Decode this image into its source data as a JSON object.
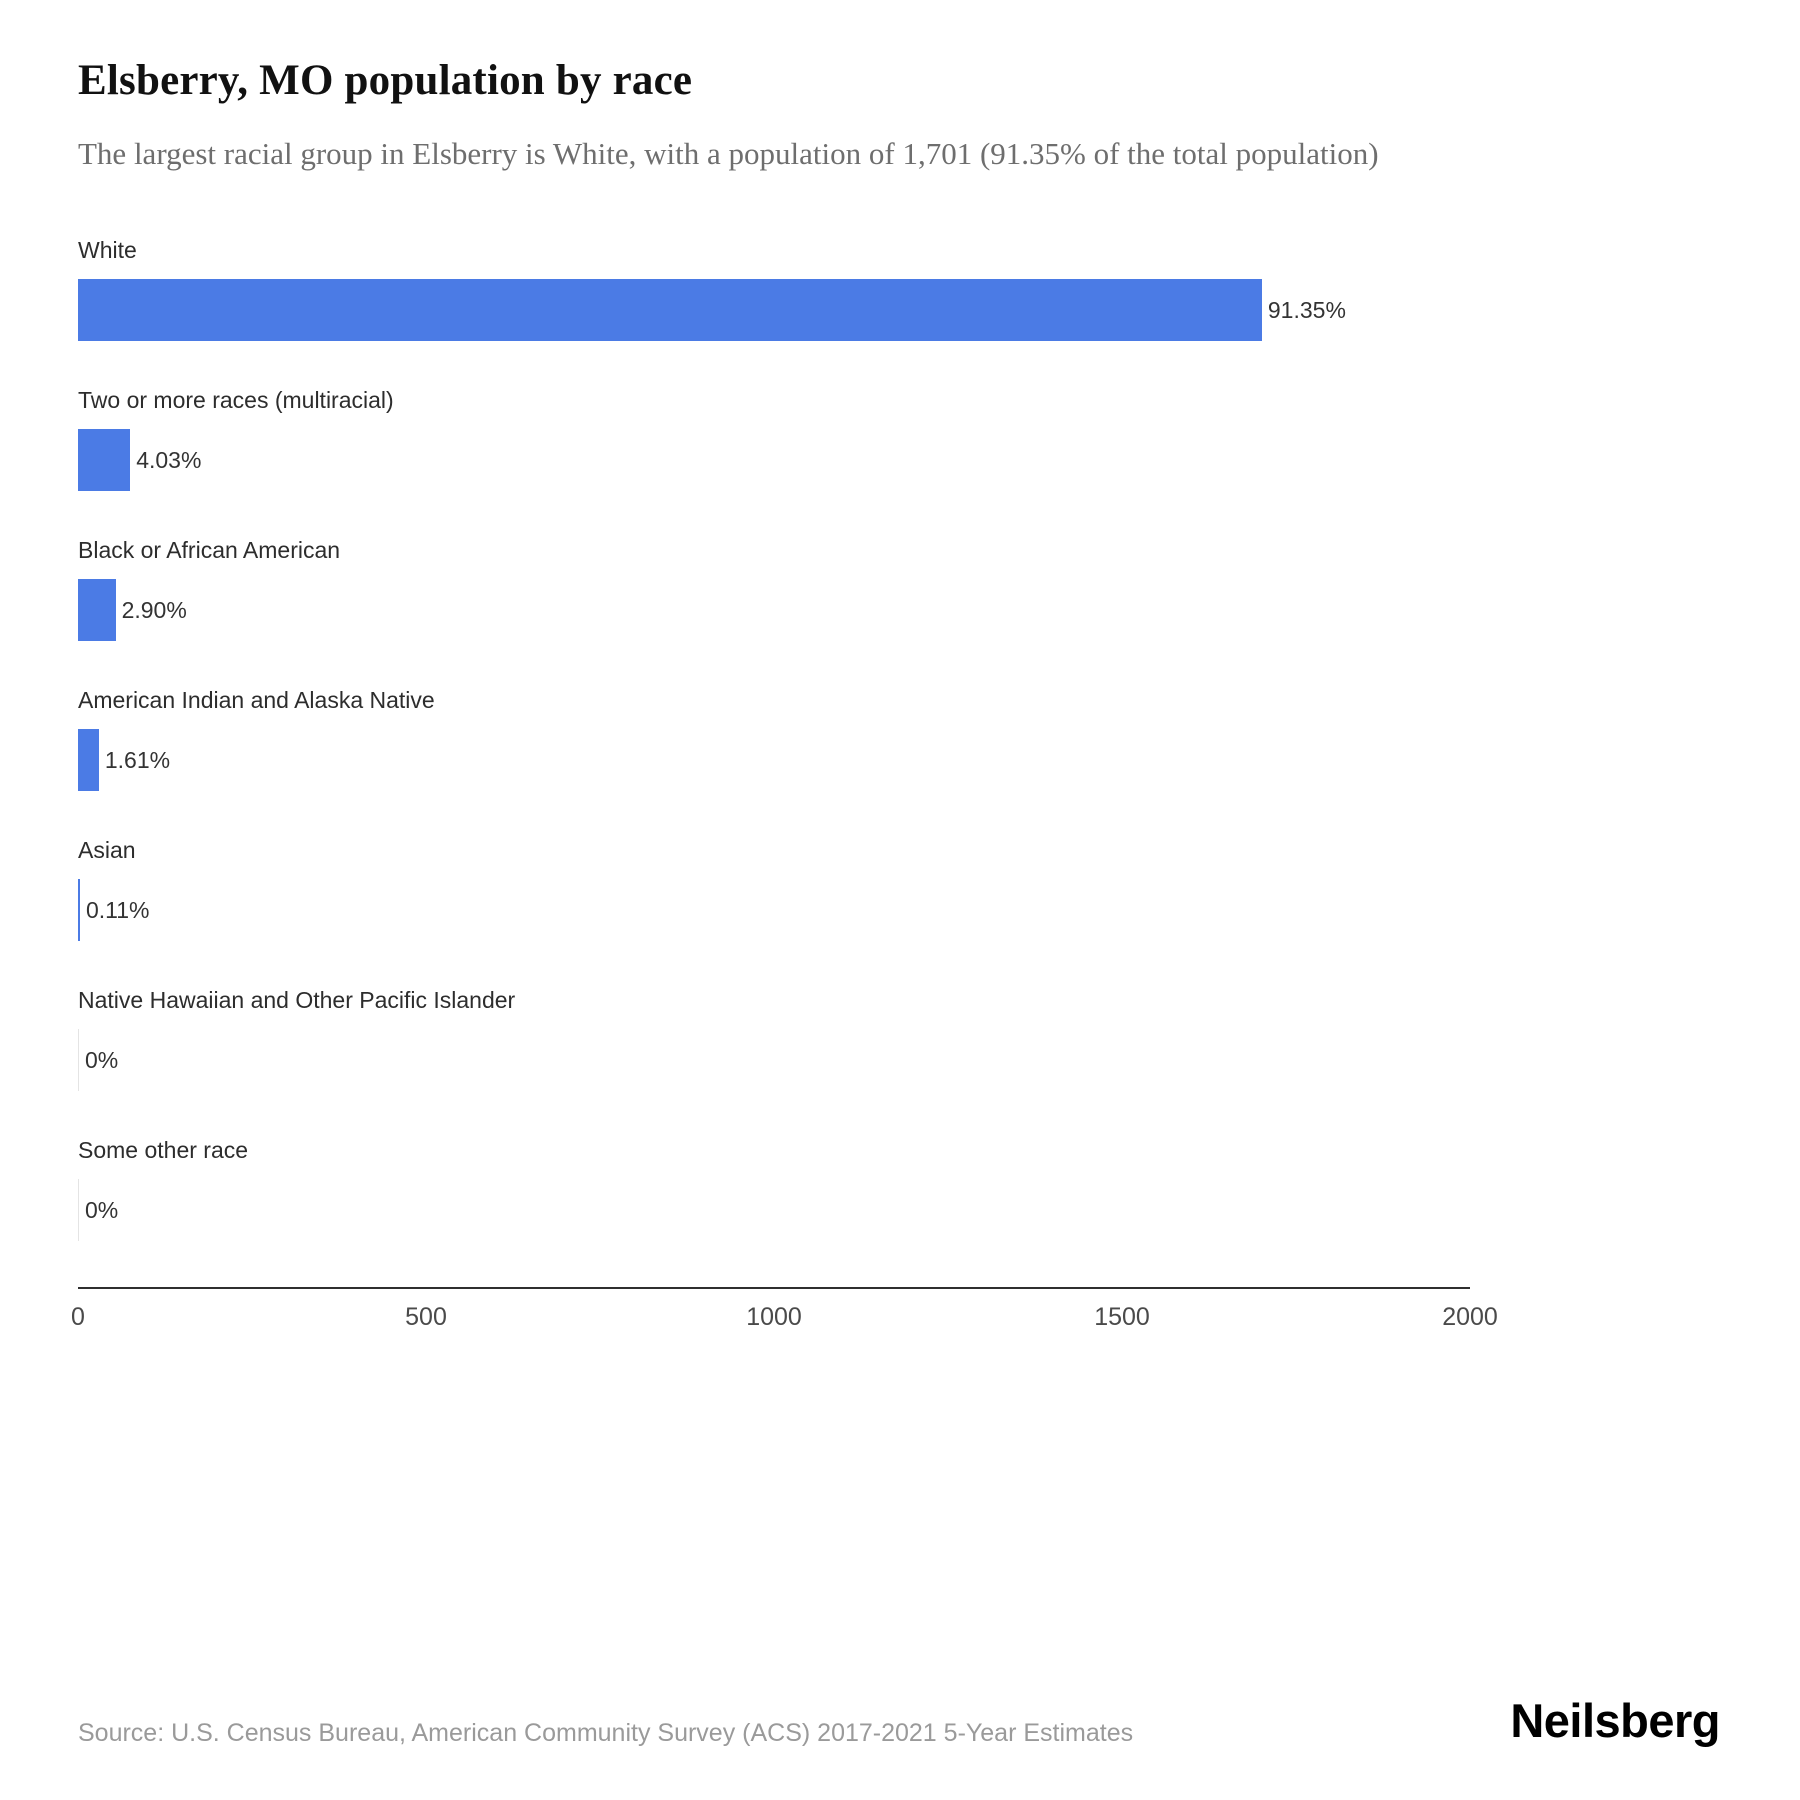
{
  "header": {
    "title": "Elsberry, MO population by race",
    "subtitle": "The largest racial group in Elsberry is White, with a population of 1,701 (91.35% of the total population)"
  },
  "chart_data": {
    "type": "bar",
    "orientation": "horizontal",
    "title": "Elsberry, MO population by race",
    "categories": [
      "White",
      "Two or more races (multiracial)",
      "Black or African American",
      "American Indian and Alaska Native",
      "Asian",
      "Native Hawaiian and Other Pacific Islander",
      "Some other race"
    ],
    "values": [
      1701,
      75,
      54,
      30,
      2,
      0,
      0
    ],
    "value_labels": [
      "91.35%",
      "4.03%",
      "2.90%",
      "1.61%",
      "0.11%",
      "0%",
      "0%"
    ],
    "xlabel": "",
    "ylabel": "",
    "xlim": [
      0,
      2000
    ],
    "x_ticks": [
      "0",
      "500",
      "1000",
      "1500",
      "2000"
    ],
    "x_tick_values": [
      0,
      500,
      1000,
      1500,
      2000
    ],
    "grid": false,
    "legend": false,
    "bar_color": "#4b7be5",
    "zero_bar_color": "#e4e4e4"
  },
  "footer": {
    "source": "Source: U.S. Census Bureau, American Community Survey (ACS) 2017-2021 5-Year Estimates",
    "brand": "Neilsberg"
  }
}
